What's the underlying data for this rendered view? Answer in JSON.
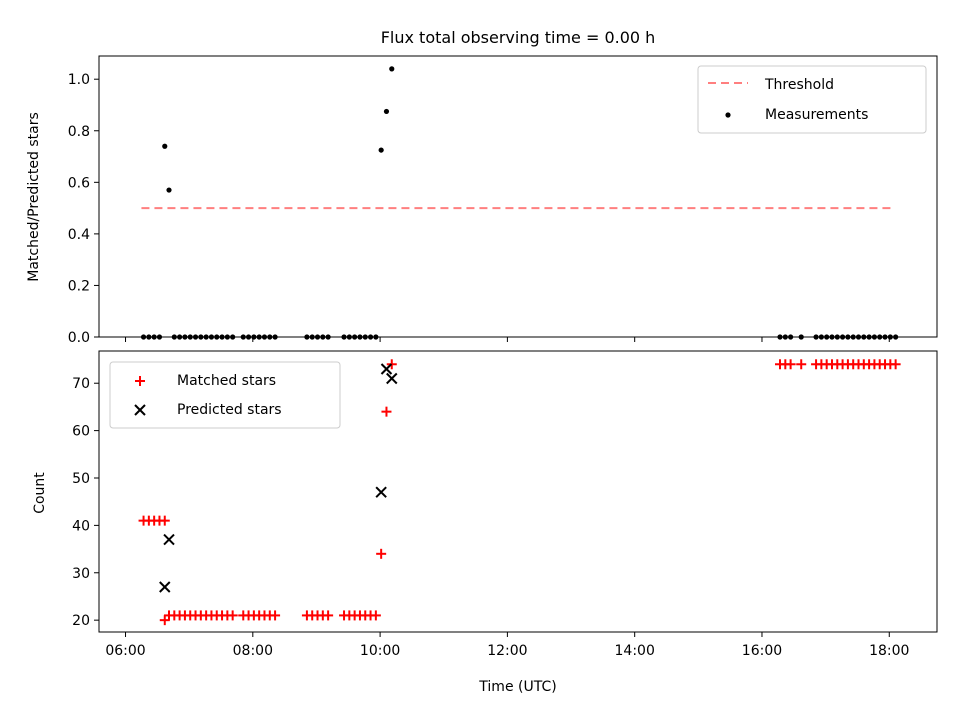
{
  "chart_data": [
    {
      "type": "scatter",
      "title": "Flux total observing time = 0.00 h",
      "xlabel": "",
      "ylabel": "Matched/Predicted stars",
      "ylim": [
        0,
        1.09
      ],
      "yticks": [
        0.0,
        0.2,
        0.4,
        0.6,
        0.8,
        1.0
      ],
      "ytick_labels": [
        "0.0",
        "0.2",
        "0.4",
        "0.6",
        "0.8",
        "1.0"
      ],
      "legend_position": "top-right",
      "threshold": {
        "name": "Threshold",
        "value": 0.5,
        "x_range": [
          "06:15",
          "18:05"
        ],
        "color": "#ff7f7f"
      },
      "series": [
        {
          "name": "Measurements",
          "color": "#000000",
          "x": [
            "06:17",
            "06:22",
            "06:27",
            "06:32",
            "06:37",
            "06:41",
            "06:46",
            "06:51",
            "06:56",
            "07:01",
            "07:06",
            "07:11",
            "07:16",
            "07:21",
            "07:26",
            "07:31",
            "07:36",
            "07:41",
            "07:51",
            "07:56",
            "08:01",
            "08:06",
            "08:11",
            "08:16",
            "08:21",
            "08:51",
            "08:56",
            "09:01",
            "09:06",
            "09:11",
            "09:26",
            "09:31",
            "09:36",
            "09:41",
            "09:46",
            "09:51",
            "09:56",
            "10:01",
            "10:06",
            "10:11",
            "16:17",
            "16:22",
            "16:27",
            "16:37",
            "16:51",
            "16:56",
            "17:01",
            "17:06",
            "17:11",
            "17:16",
            "17:21",
            "17:26",
            "17:31",
            "17:36",
            "17:41",
            "17:46",
            "17:51",
            "17:56",
            "18:01",
            "18:06"
          ],
          "y": [
            0,
            0,
            0,
            0,
            0.74,
            0.57,
            0,
            0,
            0,
            0,
            0,
            0,
            0,
            0,
            0,
            0,
            0,
            0,
            0,
            0,
            0,
            0,
            0,
            0,
            0,
            0,
            0,
            0,
            0,
            0,
            0,
            0,
            0,
            0,
            0,
            0,
            0,
            0.725,
            0.875,
            1.04,
            0,
            0,
            0,
            0,
            0,
            0,
            0,
            0,
            0,
            0,
            0,
            0,
            0,
            0,
            0,
            0,
            0,
            0,
            0,
            0
          ]
        }
      ]
    },
    {
      "type": "scatter",
      "title": "",
      "xlabel": "Time (UTC)",
      "ylabel": "Count",
      "xlim": [
        "05:35",
        "18:45"
      ],
      "ylim": [
        17.5,
        76.8
      ],
      "yticks": [
        20,
        30,
        40,
        50,
        60,
        70
      ],
      "xticks": [
        "06:00",
        "08:00",
        "10:00",
        "12:00",
        "14:00",
        "16:00",
        "18:00"
      ],
      "legend_position": "top-left",
      "series": [
        {
          "name": "Matched stars",
          "color": "#ff0000",
          "marker": "plus",
          "x": [
            "06:17",
            "06:22",
            "06:27",
            "06:32",
            "06:37",
            "06:37",
            "06:41",
            "06:46",
            "06:51",
            "06:56",
            "07:01",
            "07:06",
            "07:11",
            "07:16",
            "07:21",
            "07:26",
            "07:31",
            "07:36",
            "07:41",
            "07:51",
            "07:56",
            "08:01",
            "08:06",
            "08:11",
            "08:16",
            "08:21",
            "08:51",
            "08:56",
            "09:01",
            "09:06",
            "09:11",
            "09:26",
            "09:31",
            "09:36",
            "09:41",
            "09:46",
            "09:51",
            "09:56",
            "10:01",
            "10:06",
            "10:11",
            "16:17",
            "16:22",
            "16:27",
            "16:37",
            "16:51",
            "16:56",
            "17:01",
            "17:06",
            "17:11",
            "17:16",
            "17:21",
            "17:26",
            "17:31",
            "17:36",
            "17:41",
            "17:46",
            "17:51",
            "17:56",
            "18:01",
            "18:06"
          ],
          "y": [
            41,
            41,
            41,
            41,
            41,
            20,
            21,
            21,
            21,
            21,
            21,
            21,
            21,
            21,
            21,
            21,
            21,
            21,
            21,
            21,
            21,
            21,
            21,
            21,
            21,
            21,
            21,
            21,
            21,
            21,
            21,
            21,
            21,
            21,
            21,
            21,
            21,
            21,
            34,
            64,
            74,
            74,
            74,
            74,
            74,
            74,
            74,
            74,
            74,
            74,
            74,
            74,
            74,
            74,
            74,
            74,
            74,
            74,
            74,
            74,
            74
          ]
        },
        {
          "name": "Predicted stars",
          "color": "#000000",
          "marker": "x",
          "x": [
            "06:37",
            "06:41",
            "10:01",
            "10:06",
            "10:11"
          ],
          "y": [
            27,
            37,
            47,
            73,
            71
          ]
        }
      ]
    }
  ]
}
